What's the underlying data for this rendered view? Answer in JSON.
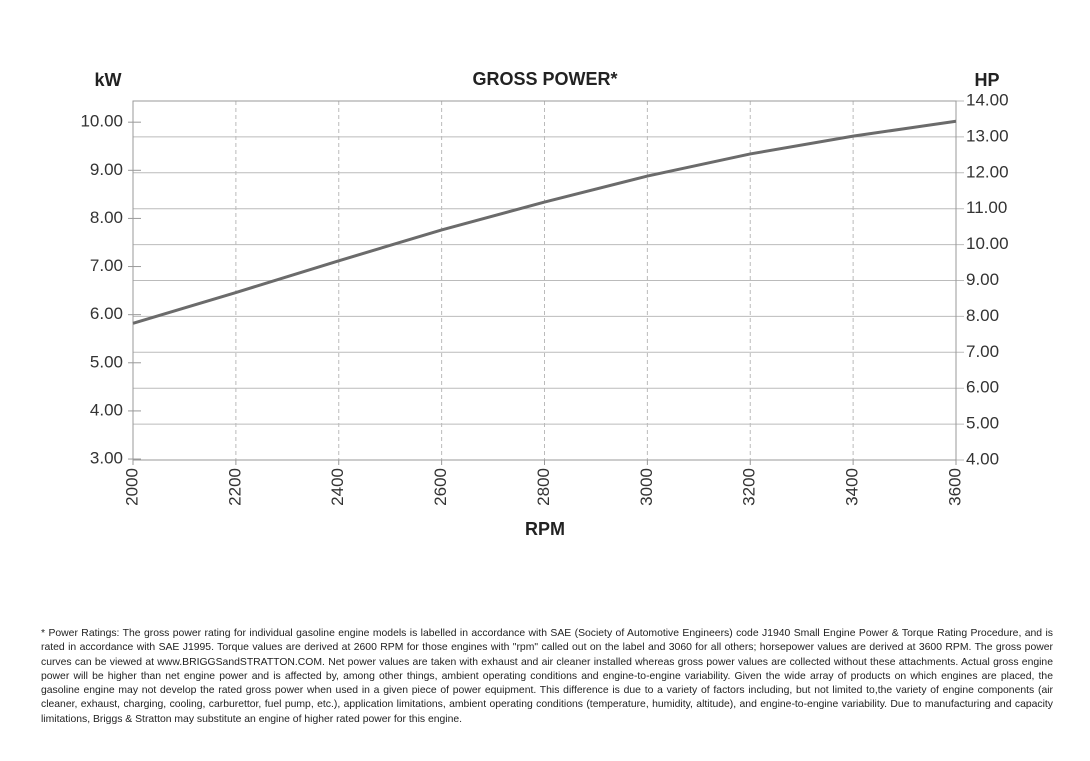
{
  "chart_data": {
    "type": "line",
    "title": "GROSS POWER*",
    "ylabel": "kW",
    "y2label": "HP",
    "xlabel": "RPM",
    "x": [
      2000,
      2200,
      2400,
      2600,
      2800,
      3000,
      3200,
      3400,
      3600
    ],
    "series": [
      {
        "color": "#6b6b6b",
        "values": [
          5.82,
          6.46,
          7.12,
          7.76,
          8.34,
          8.88,
          9.34,
          9.71,
          10.02
        ]
      }
    ],
    "xlim": [
      2000,
      3600
    ],
    "xticks": [
      2000,
      2200,
      2400,
      2600,
      2800,
      3000,
      3200,
      3400,
      3600
    ],
    "ylim": [
      2.98,
      10.44
    ],
    "yticks": [
      {
        "value": 3,
        "label": "3.00"
      },
      {
        "value": 4,
        "label": "4.00"
      },
      {
        "value": 5,
        "label": "5.00"
      },
      {
        "value": 6,
        "label": "6.00"
      },
      {
        "value": 7,
        "label": "7.00"
      },
      {
        "value": 8,
        "label": "8.00"
      },
      {
        "value": 9,
        "label": "9.00"
      },
      {
        "value": 10,
        "label": "10.00"
      }
    ],
    "y2lim": [
      4,
      14
    ],
    "y2ticks": [
      {
        "value": 4,
        "label": "4.00"
      },
      {
        "value": 5,
        "label": "5.00"
      },
      {
        "value": 6,
        "label": "6.00"
      },
      {
        "value": 7,
        "label": "7.00"
      },
      {
        "value": 8,
        "label": "8.00"
      },
      {
        "value": 9,
        "label": "9.00"
      },
      {
        "value": 10,
        "label": "10.00"
      },
      {
        "value": 11,
        "label": "11.00"
      },
      {
        "value": 12,
        "label": "12.00"
      },
      {
        "value": 13,
        "label": "13.00"
      },
      {
        "value": 14,
        "label": "14.00"
      }
    ],
    "grid": true,
    "footnote": "* Power Ratings: The gross power rating for individual gasoline engine models is labelled in accordance with SAE (Society of Automotive Engineers) code J1940 Small Engine Power & Torque Rating Procedure, and is rated in accordance with SAE J1995. Torque values are derived at 2600 RPM for those engines with \"rpm\" called out on the label and 3060 for all others; horsepower values are derived at 3600 RPM. The gross power curves can be viewed at www.BRIGGSandSTRATTON.COM. Net power values are taken with exhaust and air cleaner installed whereas gross power values are collected without these attachments. Actual gross engine power will be higher than net engine power and is affected by, among other things, ambient operating conditions and engine-to-engine variability. Given the wide array of products on which engines are placed, the gasoline engine may not develop the rated gross power when used in a given piece of power equipment. This difference is due to a variety of factors including, but not limited to,the variety of engine components (air cleaner, exhaust, charging, cooling, carburettor, fuel pump, etc.), application limitations, ambient operating conditions (temperature, humidity, altitude), and engine-to-engine variability. Due to manufacturing and capacity limitations, Briggs & Stratton may substitute an engine of higher rated power for this engine."
  }
}
